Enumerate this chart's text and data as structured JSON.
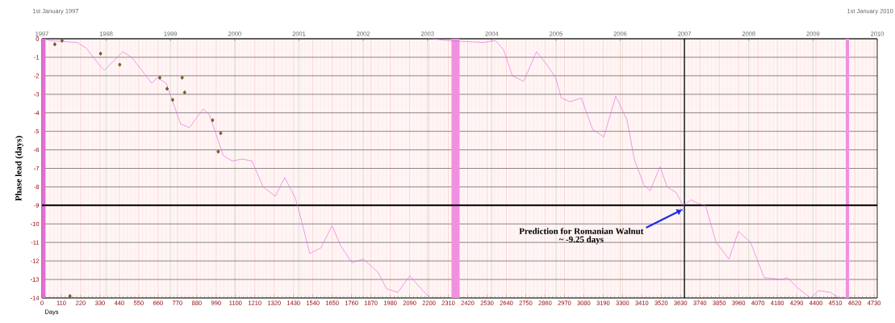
{
  "chart_data": {
    "type": "line",
    "xlabel": "Days",
    "ylabel": "Phase lead (days)",
    "xlim": [
      0,
      4748
    ],
    "xticks": [
      0,
      110,
      220,
      330,
      440,
      550,
      660,
      770,
      880,
      990,
      1100,
      1210,
      1320,
      1430,
      1540,
      1650,
      1760,
      1870,
      1980,
      2090,
      2200,
      2310,
      2420,
      2530,
      2640,
      2750,
      2860,
      2970,
      3080,
      3190,
      3300,
      3410,
      3520,
      3630,
      3740,
      3850,
      3960,
      4070,
      4180,
      4290,
      4400,
      4510,
      4620,
      4730
    ],
    "x2lim": [
      1997,
      2010
    ],
    "x2ticks": [
      1997,
      1998,
      1999,
      2000,
      2001,
      2002,
      2003,
      2004,
      2005,
      2006,
      2007,
      2008,
      2009,
      2010
    ],
    "ylim": [
      -14,
      0
    ],
    "yticks": [
      -14,
      -13,
      -12,
      -11,
      -10,
      -9,
      -8,
      -7,
      -6,
      -5,
      -4,
      -3,
      -2,
      -1,
      0
    ],
    "grid": true,
    "ref_lines": [
      {
        "axis": "x",
        "value": 3652,
        "color": "#000000"
      },
      {
        "axis": "y",
        "value": -9,
        "color": "#000000"
      }
    ],
    "bands": [
      {
        "axis": "x",
        "from": 0,
        "to": 20,
        "color": "#e070d0"
      },
      {
        "axis": "x",
        "from": 2328,
        "to": 2374,
        "color": "#f090e0"
      },
      {
        "axis": "x",
        "from": 4569,
        "to": 4588,
        "color": "#f090e0"
      }
    ],
    "series": [
      {
        "type": "line",
        "color": "#e060e0",
        "x": [
          14,
          41,
          200,
          251,
          333,
          355,
          460,
          510,
          624,
          656,
          706,
          788,
          838,
          916,
          952,
          1030,
          1080,
          1139,
          1194,
          1257,
          1326,
          1380,
          1440,
          1472,
          1522,
          1585,
          1649,
          1699,
          1763,
          1827,
          1909,
          1959,
          2023,
          2091,
          2155,
          2205,
          2212,
          2219,
          2301,
          2510,
          2579,
          2624,
          2674,
          2738,
          2811,
          2870,
          2920,
          2952,
          3002,
          3066,
          3130,
          3194,
          3262,
          3326,
          3367,
          3422,
          3458,
          3513,
          3554,
          3604,
          3645,
          3690,
          3731,
          3772,
          3832,
          3905,
          3959,
          4028,
          4105,
          4205,
          4237,
          4301,
          4369,
          4415,
          4483,
          4529,
          4579
        ],
        "values": [
          0.0,
          -0.1,
          -0.2,
          -0.5,
          -1.5,
          -1.7,
          -0.7,
          -1.0,
          -2.4,
          -2.1,
          -2.4,
          -4.6,
          -4.8,
          -3.8,
          -4.1,
          -6.3,
          -6.6,
          -6.5,
          -6.6,
          -8.0,
          -8.5,
          -7.5,
          -8.6,
          -9.7,
          -11.6,
          -11.3,
          -10.1,
          -11.2,
          -12.1,
          -11.9,
          -12.6,
          -13.5,
          -13.7,
          -12.8,
          -13.5,
          -14.0,
          null,
          0.0,
          -0.1,
          -0.2,
          -0.1,
          -0.6,
          -2.0,
          -2.3,
          -0.7,
          -1.4,
          -2.1,
          -3.2,
          -3.4,
          -3.2,
          -4.9,
          -5.3,
          -3.1,
          -4.4,
          -6.5,
          -7.9,
          -8.2,
          -6.9,
          -8.0,
          -8.3,
          -9.0,
          -8.7,
          -8.9,
          -9.0,
          -11.0,
          -11.9,
          -10.4,
          -11.0,
          -12.9,
          -13.0,
          -12.9,
          -13.5,
          -14.0,
          -13.6,
          -13.7,
          -14.0,
          -14.0
        ]
      },
      {
        "type": "scatter",
        "color": "#1a2ee6",
        "marker": "cross",
        "x": [
          3636
        ],
        "values": [
          -9.25
        ]
      },
      {
        "type": "scatter",
        "color": "#7a5a2a",
        "marker": "diamond",
        "x": [
          73,
          114,
          333,
          442,
          670,
          711,
          743,
          797,
          811,
          970,
          1016,
          1002,
          159
        ],
        "values": [
          -0.3,
          -0.1,
          -0.8,
          -1.4,
          -2.1,
          -2.7,
          -3.3,
          -2.1,
          -2.9,
          -4.4,
          -5.1,
          -6.1,
          -13.9
        ]
      }
    ],
    "annotations": [
      {
        "text": "Prediction for Romanian Walnut",
        "x": 3636,
        "y": -9.25
      },
      "~ -9.25 days",
      "1st January 1997",
      "1st January 2010"
    ]
  }
}
